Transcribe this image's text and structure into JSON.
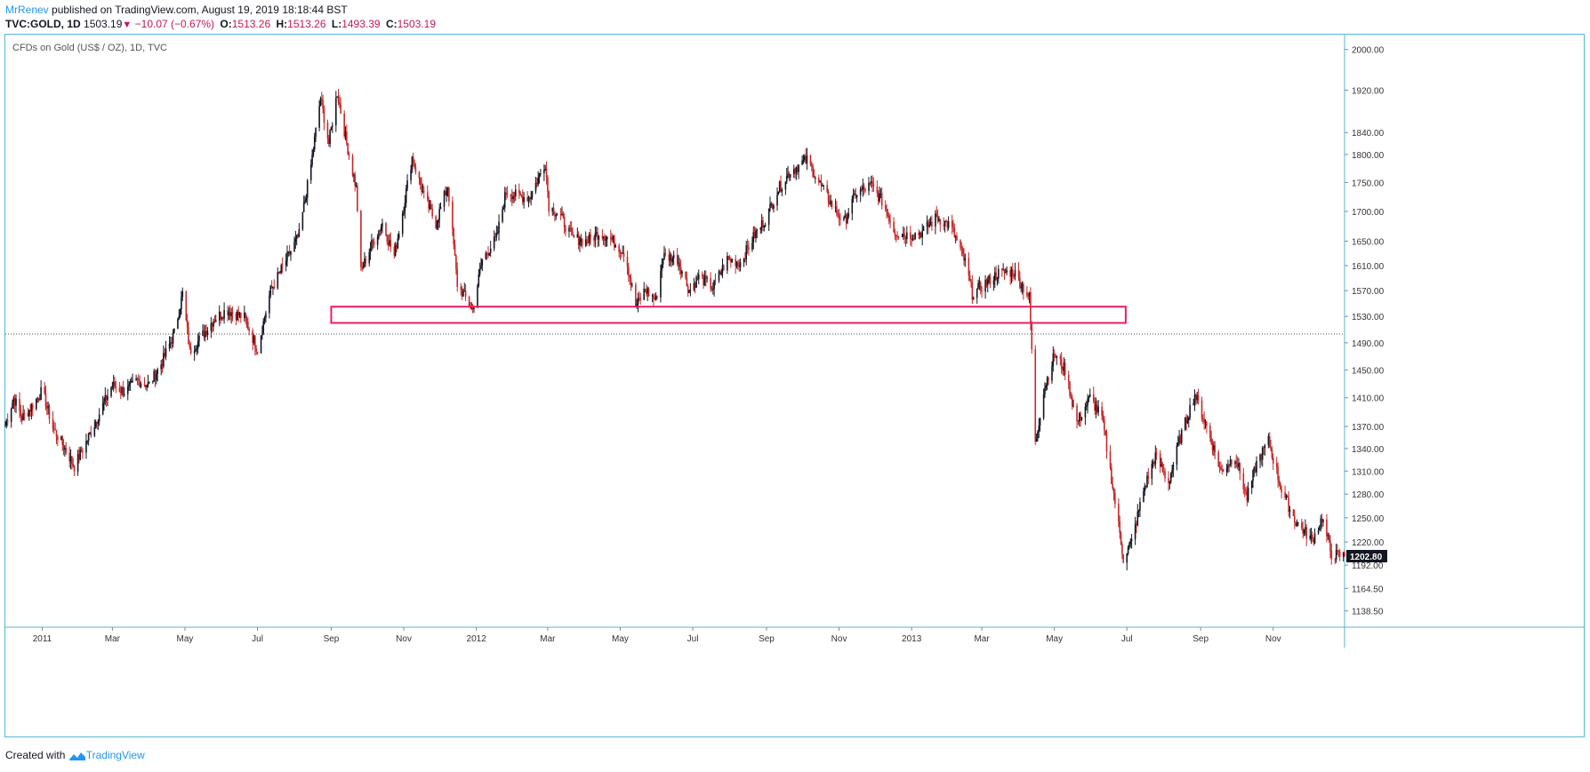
{
  "header": {
    "author": "MrRenev",
    "published_text": " published on TradingView.com, August 19, 2019 18:18:44 BST",
    "symbol": "TVC:GOLD, 1D",
    "last_price": "1503.19",
    "change": "−10.07 (−0.67%)",
    "open_label": "O:",
    "open_value": "1513.26",
    "high_label": "H:",
    "high_value": "1513.26",
    "low_label": "L:",
    "low_value": "1493.39",
    "close_label": "C:",
    "close_value": "1503.19"
  },
  "footer": {
    "created_with": "Created with",
    "brand": "TradingView"
  },
  "colors": {
    "up": "#131722",
    "down": "#c62828",
    "zone": "#e91e63",
    "border": "#55b6d6",
    "last_price_tag": "#131722"
  },
  "chart_data": {
    "type": "candlestick",
    "title": "CFDs on Gold (US$ / OZ), 1D, TVC",
    "scale": "log",
    "ylim": [
      1120,
      2030
    ],
    "y_ticks": [
      "2000.00",
      "1920.00",
      "1840.00",
      "1800.00",
      "1750.00",
      "1700.00",
      "1650.00",
      "1610.00",
      "1570.00",
      "1530.00",
      "1490.00",
      "1450.00",
      "1410.00",
      "1370.00",
      "1340.00",
      "1310.00",
      "1280.00",
      "1250.00",
      "1220.00",
      "1192.00",
      "1164.50",
      "1138.50"
    ],
    "x_ticks": [
      {
        "label": "2011",
        "date": "2011-01-01"
      },
      {
        "label": "Mar",
        "date": "2011-03-01"
      },
      {
        "label": "May",
        "date": "2011-05-01"
      },
      {
        "label": "Jul",
        "date": "2011-07-01"
      },
      {
        "label": "Sep",
        "date": "2011-09-01"
      },
      {
        "label": "Nov",
        "date": "2011-11-01"
      },
      {
        "label": "2012",
        "date": "2012-01-01"
      },
      {
        "label": "Mar",
        "date": "2012-03-01"
      },
      {
        "label": "May",
        "date": "2012-05-01"
      },
      {
        "label": "Jul",
        "date": "2012-07-01"
      },
      {
        "label": "Sep",
        "date": "2012-09-01"
      },
      {
        "label": "Nov",
        "date": "2012-11-01"
      },
      {
        "label": "2013",
        "date": "2013-01-01"
      },
      {
        "label": "Mar",
        "date": "2013-03-01"
      },
      {
        "label": "May",
        "date": "2013-05-01"
      },
      {
        "label": "Jul",
        "date": "2013-07-01"
      },
      {
        "label": "Sep",
        "date": "2013-09-01"
      },
      {
        "label": "Nov",
        "date": "2013-11-01"
      }
    ],
    "x_range": [
      "2010-12-01",
      "2013-12-31"
    ],
    "price_path": [
      [
        "2010-12-01",
        1372
      ],
      [
        "2010-12-08",
        1410
      ],
      [
        "2010-12-15",
        1382
      ],
      [
        "2010-12-22",
        1395
      ],
      [
        "2011-01-01",
        1420
      ],
      [
        "2011-01-10",
        1368
      ],
      [
        "2011-01-20",
        1340
      ],
      [
        "2011-01-28",
        1316
      ],
      [
        "2011-02-08",
        1352
      ],
      [
        "2011-02-18",
        1388
      ],
      [
        "2011-03-01",
        1428
      ],
      [
        "2011-03-12",
        1418
      ],
      [
        "2011-03-22",
        1435
      ],
      [
        "2011-04-01",
        1428
      ],
      [
        "2011-04-12",
        1462
      ],
      [
        "2011-04-22",
        1504
      ],
      [
        "2011-04-29",
        1565
      ],
      [
        "2011-05-05",
        1478
      ],
      [
        "2011-05-12",
        1492
      ],
      [
        "2011-05-25",
        1525
      ],
      [
        "2011-06-05",
        1540
      ],
      [
        "2011-06-20",
        1528
      ],
      [
        "2011-07-01",
        1480
      ],
      [
        "2011-07-12",
        1570
      ],
      [
        "2011-07-25",
        1618
      ],
      [
        "2011-08-05",
        1660
      ],
      [
        "2011-08-15",
        1780
      ],
      [
        "2011-08-23",
        1905
      ],
      [
        "2011-08-30",
        1820
      ],
      [
        "2011-09-06",
        1915
      ],
      [
        "2011-09-14",
        1820
      ],
      [
        "2011-09-22",
        1740
      ],
      [
        "2011-09-26",
        1600
      ],
      [
        "2011-10-04",
        1640
      ],
      [
        "2011-10-14",
        1680
      ],
      [
        "2011-10-24",
        1625
      ],
      [
        "2011-11-01",
        1710
      ],
      [
        "2011-11-08",
        1795
      ],
      [
        "2011-11-18",
        1725
      ],
      [
        "2011-11-28",
        1680
      ],
      [
        "2011-12-08",
        1745
      ],
      [
        "2011-12-16",
        1580
      ],
      [
        "2011-12-29",
        1540
      ],
      [
        "2012-01-06",
        1620
      ],
      [
        "2012-01-18",
        1655
      ],
      [
        "2012-01-26",
        1735
      ],
      [
        "2012-02-06",
        1725
      ],
      [
        "2012-02-15",
        1725
      ],
      [
        "2012-02-28",
        1785
      ],
      [
        "2012-03-02",
        1710
      ],
      [
        "2012-03-12",
        1690
      ],
      [
        "2012-03-22",
        1655
      ],
      [
        "2012-04-03",
        1650
      ],
      [
        "2012-04-14",
        1665
      ],
      [
        "2012-04-25",
        1650
      ],
      [
        "2012-05-05",
        1630
      ],
      [
        "2012-05-14",
        1545
      ],
      [
        "2012-05-22",
        1572
      ],
      [
        "2012-05-31",
        1555
      ],
      [
        "2012-06-06",
        1625
      ],
      [
        "2012-06-18",
        1622
      ],
      [
        "2012-06-28",
        1570
      ],
      [
        "2012-07-06",
        1592
      ],
      [
        "2012-07-18",
        1575
      ],
      [
        "2012-07-30",
        1620
      ],
      [
        "2012-08-10",
        1615
      ],
      [
        "2012-08-22",
        1660
      ],
      [
        "2012-09-01",
        1690
      ],
      [
        "2012-09-10",
        1735
      ],
      [
        "2012-09-21",
        1770
      ],
      [
        "2012-10-05",
        1790
      ],
      [
        "2012-10-15",
        1750
      ],
      [
        "2012-10-25",
        1715
      ],
      [
        "2012-11-05",
        1680
      ],
      [
        "2012-11-15",
        1730
      ],
      [
        "2012-11-28",
        1745
      ],
      [
        "2012-12-08",
        1715
      ],
      [
        "2012-12-18",
        1665
      ],
      [
        "2012-12-30",
        1660
      ],
      [
        "2013-01-10",
        1665
      ],
      [
        "2013-01-22",
        1690
      ],
      [
        "2013-02-03",
        1675
      ],
      [
        "2013-02-15",
        1615
      ],
      [
        "2013-02-21",
        1565
      ],
      [
        "2013-03-03",
        1580
      ],
      [
        "2013-03-15",
        1598
      ],
      [
        "2013-03-28",
        1600
      ],
      [
        "2013-04-05",
        1575
      ],
      [
        "2013-04-10",
        1560
      ],
      [
        "2013-04-12",
        1480
      ],
      [
        "2013-04-15",
        1345
      ],
      [
        "2013-04-22",
        1420
      ],
      [
        "2013-05-01",
        1472
      ],
      [
        "2013-05-10",
        1450
      ],
      [
        "2013-05-20",
        1375
      ],
      [
        "2013-05-31",
        1410
      ],
      [
        "2013-06-10",
        1382
      ],
      [
        "2013-06-20",
        1280
      ],
      [
        "2013-06-28",
        1200
      ],
      [
        "2013-07-05",
        1220
      ],
      [
        "2013-07-15",
        1285
      ],
      [
        "2013-07-25",
        1330
      ],
      [
        "2013-08-05",
        1295
      ],
      [
        "2013-08-15",
        1355
      ],
      [
        "2013-08-27",
        1415
      ],
      [
        "2013-09-06",
        1370
      ],
      [
        "2013-09-18",
        1310
      ],
      [
        "2013-09-30",
        1330
      ],
      [
        "2013-10-10",
        1275
      ],
      [
        "2013-10-18",
        1320
      ],
      [
        "2013-10-28",
        1350
      ],
      [
        "2013-11-08",
        1285
      ],
      [
        "2013-11-20",
        1245
      ],
      [
        "2013-12-04",
        1222
      ],
      [
        "2013-12-12",
        1250
      ],
      [
        "2013-12-20",
        1205
      ],
      [
        "2013-12-31",
        1203
      ]
    ],
    "last_price": "1202.80",
    "horizontal_line": {
      "price": 1503.19,
      "style": "dotted"
    },
    "annotations": [
      {
        "type": "rectangle",
        "date_start": "2011-09-01",
        "date_end": "2013-06-30",
        "price_top": 1545,
        "price_bottom": 1520,
        "color": "#e91e63"
      }
    ]
  }
}
